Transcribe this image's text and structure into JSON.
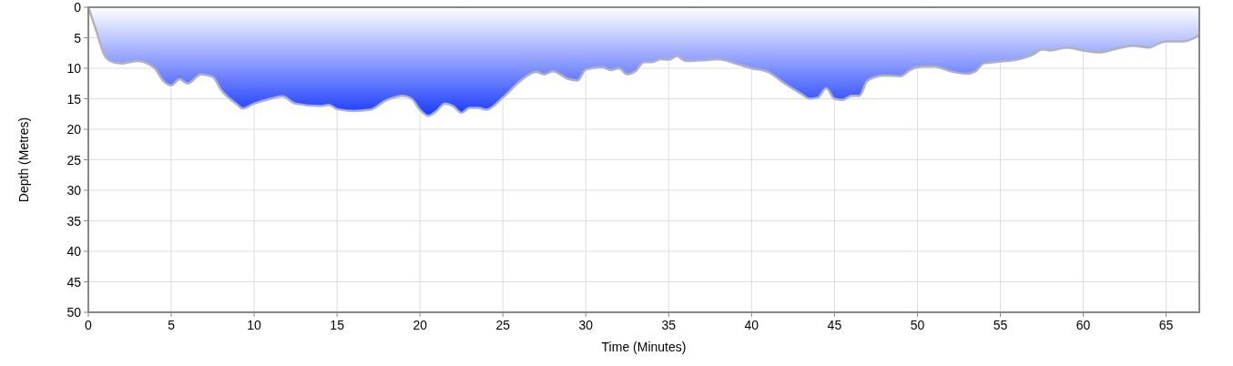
{
  "chart_data": {
    "type": "area",
    "xlabel": "Time (Minutes)",
    "ylabel": "Depth (Metres)",
    "xlim": [
      0,
      67
    ],
    "xticks": [
      0,
      5,
      10,
      15,
      20,
      25,
      30,
      35,
      40,
      45,
      50,
      55,
      60,
      65
    ],
    "ylim": [
      50,
      0
    ],
    "yticks": [
      0,
      5,
      10,
      15,
      20,
      25,
      30,
      35,
      40,
      45,
      50
    ],
    "grid": true,
    "x": [
      0,
      0.5,
      1,
      1.5,
      2,
      3,
      4,
      4.5,
      5,
      5.5,
      6,
      6.8,
      7.5,
      8,
      9,
      9.3,
      10,
      11,
      11.7,
      12.5,
      14,
      14.5,
      15,
      16,
      17,
      18,
      19,
      19.5,
      20,
      20.5,
      21,
      21.5,
      22,
      22.5,
      23,
      23.5,
      24,
      25,
      26,
      27,
      27.5,
      28,
      29,
      29.5,
      30,
      31,
      31.5,
      32,
      32.5,
      33,
      33.5,
      34,
      34.5,
      35,
      35.5,
      36,
      37,
      38,
      39,
      40,
      41,
      42,
      43,
      43.5,
      44,
      44.5,
      45,
      45.5,
      46,
      46.5,
      47,
      48,
      49,
      49.5,
      50,
      51,
      52,
      53,
      53.5,
      54,
      55,
      56,
      57,
      57.5,
      58,
      59,
      60,
      61,
      62,
      63,
      64,
      64.5,
      65,
      66,
      67
    ],
    "series": [
      {
        "color": "#1a3cff",
        "values": [
          0,
          4,
          8,
          9,
          9.2,
          8.8,
          10,
          12,
          12.8,
          11.8,
          12.5,
          11,
          11.4,
          13.5,
          16,
          16.6,
          15.8,
          15,
          14.6,
          15.8,
          16.2,
          16,
          16.7,
          17,
          16.8,
          15.2,
          14.5,
          15,
          16.8,
          17.8,
          17,
          15.8,
          16.2,
          17.3,
          16.5,
          16.5,
          16.8,
          14.8,
          12.2,
          10.6,
          11,
          10.5,
          11.8,
          12,
          10.2,
          9.8,
          10.3,
          10,
          11,
          10.5,
          9,
          9,
          8.5,
          8.6,
          8,
          8.8,
          8.7,
          8.5,
          9.2,
          10,
          10.6,
          12.5,
          14.2,
          15,
          14.8,
          13.3,
          15,
          15.2,
          14.5,
          14.5,
          12,
          11.2,
          11.3,
          10.4,
          9.8,
          9.7,
          10.5,
          10.9,
          10.5,
          9.2,
          8.9,
          8.6,
          7.7,
          6.9,
          7.1,
          6.6,
          7.1,
          7.4,
          6.8,
          6.3,
          6.6,
          6,
          5.6,
          5.6,
          4.6
        ]
      }
    ]
  }
}
